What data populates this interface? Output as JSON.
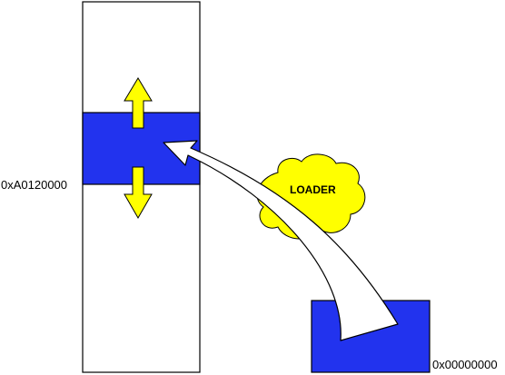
{
  "labels": {
    "load_address": "0xA0120000",
    "base_address": "0x00000000",
    "loader": "LOADER"
  },
  "colors": {
    "block_fill": "#2233ee",
    "arrow_fill": "#ffff00",
    "cloud_fill": "#ffff00",
    "stroke": "#000000"
  }
}
